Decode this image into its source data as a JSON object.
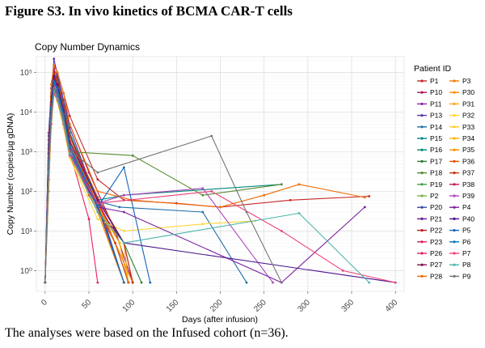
{
  "figure_title": "Figure S3. In vivo kinetics of BCMA CAR-T cells",
  "caption": "The analyses were based on the Infused cohort (n=36).",
  "chart_data": {
    "type": "line",
    "title": "Copy Number Dynamics",
    "xlabel": "Days (after infusion)",
    "ylabel": "Copy Number (copies/µg gDNA)",
    "yscale": "log",
    "xlim": [
      -10,
      410
    ],
    "ylim": [
      0.3,
      250000
    ],
    "xticks": [
      0,
      50,
      100,
      150,
      200,
      250,
      300,
      350,
      400
    ],
    "yticks": [
      1,
      10,
      100,
      1000,
      10000,
      100000
    ],
    "ytick_labels": [
      "10⁰",
      "10¹",
      "10²",
      "10³",
      "10⁴",
      "10⁵"
    ],
    "grid": true,
    "legend_title": "Patient ID",
    "legend_position": "right",
    "series": [
      {
        "name": "P1",
        "color": "#c62828",
        "x": [
          0,
          4,
          8,
          11,
          14,
          21,
          28,
          60,
          90,
          150,
          200,
          280,
          370
        ],
        "y": [
          0.5,
          2000,
          60000,
          150000,
          100000,
          30000,
          8000,
          200,
          60,
          50,
          40,
          60,
          75
        ]
      },
      {
        "name": "P10",
        "color": "#ad1457",
        "x": [
          0,
          4,
          7,
          10,
          14,
          21,
          28,
          50,
          80,
          100
        ],
        "y": [
          0.5,
          1000,
          30000,
          120000,
          80000,
          20000,
          5000,
          300,
          10,
          0.5
        ]
      },
      {
        "name": "P11",
        "color": "#8e24aa",
        "x": [
          0,
          4,
          7,
          10,
          14,
          21,
          28,
          60,
          90
        ],
        "y": [
          0.5,
          3000,
          40000,
          100000,
          60000,
          15000,
          3000,
          50,
          0.5
        ]
      },
      {
        "name": "P13",
        "color": "#5e35b1",
        "x": [
          0,
          4,
          7,
          10,
          14,
          21,
          28,
          50,
          80,
          95
        ],
        "y": [
          0.5,
          500,
          20000,
          220000,
          90000,
          20000,
          4000,
          200,
          5,
          0.5
        ]
      },
      {
        "name": "P14",
        "color": "#1e6fa8",
        "x": [
          0,
          4,
          7,
          10,
          14,
          21,
          28,
          55,
          85,
          180,
          230
        ],
        "y": [
          0.5,
          400,
          15000,
          80000,
          50000,
          10000,
          2000,
          60,
          40,
          30,
          0.5
        ]
      },
      {
        "name": "P15",
        "color": "#00838f",
        "x": [
          0,
          4,
          7,
          10,
          14,
          21,
          28,
          50,
          80,
          95
        ],
        "y": [
          0.5,
          200,
          8000,
          50000,
          40000,
          9000,
          1500,
          100,
          5,
          0.5
        ]
      },
      {
        "name": "P16",
        "color": "#00897b",
        "x": [
          0,
          4,
          7,
          10,
          14,
          21,
          28,
          60,
          90,
          270
        ],
        "y": [
          0.5,
          800,
          25000,
          100000,
          70000,
          15000,
          3000,
          60,
          80,
          150
        ]
      },
      {
        "name": "P17",
        "color": "#2e7d32",
        "x": [
          0,
          4,
          7,
          10,
          14,
          21,
          28,
          60,
          90,
          110
        ],
        "y": [
          0.5,
          600,
          12000,
          60000,
          40000,
          9000,
          1000,
          40,
          5,
          0.5
        ]
      },
      {
        "name": "P18",
        "color": "#558b2f",
        "x": [
          0,
          4,
          7,
          10,
          14,
          21,
          28,
          100,
          180,
          270
        ],
        "y": [
          0.5,
          100,
          5000,
          30000,
          20000,
          5000,
          1000,
          800,
          80,
          150
        ]
      },
      {
        "name": "P19",
        "color": "#43a047",
        "x": [
          0,
          4,
          7,
          10,
          14,
          21,
          28,
          60,
          85,
          95
        ],
        "y": [
          0.5,
          1500,
          20000,
          70000,
          50000,
          10000,
          2000,
          50,
          5,
          0.5
        ]
      },
      {
        "name": "P2",
        "color": "#7cb342",
        "x": [
          0,
          4,
          7,
          10,
          14,
          21,
          28,
          60,
          90
        ],
        "y": [
          0.5,
          500,
          10000,
          40000,
          30000,
          6000,
          800,
          30,
          0.5
        ]
      },
      {
        "name": "P20",
        "color": "#3949ab",
        "x": [
          0,
          4,
          7,
          10,
          14,
          21,
          28,
          60,
          90
        ],
        "y": [
          0.5,
          2500,
          30000,
          90000,
          60000,
          12000,
          2000,
          60,
          0.5
        ]
      },
      {
        "name": "P21",
        "color": "#6a1b9a",
        "x": [
          0,
          4,
          7,
          10,
          14,
          21,
          28,
          50,
          80,
          100
        ],
        "y": [
          0.5,
          300,
          9000,
          45000,
          30000,
          7000,
          1000,
          100,
          5,
          0.5
        ]
      },
      {
        "name": "P22",
        "color": "#b71c1c",
        "x": [
          0,
          4,
          7,
          10,
          14,
          21,
          28,
          55,
          85,
          95
        ],
        "y": [
          0.5,
          700,
          18000,
          75000,
          50000,
          11000,
          2000,
          80,
          5,
          0.5
        ]
      },
      {
        "name": "P23",
        "color": "#d81b60",
        "x": [
          0,
          4,
          7,
          10,
          14,
          21,
          28,
          55,
          85,
          95
        ],
        "y": [
          0.5,
          1200,
          22000,
          85000,
          55000,
          13000,
          2500,
          90,
          5,
          0.5
        ]
      },
      {
        "name": "P26",
        "color": "#e91e63",
        "x": [
          0,
          4,
          7,
          10,
          14,
          21,
          28,
          50,
          60
        ],
        "y": [
          0.5,
          400,
          10000,
          55000,
          35000,
          8000,
          1000,
          20,
          0.5
        ]
      },
      {
        "name": "P27",
        "color": "#880e4f",
        "x": [
          0,
          4,
          7,
          10,
          14,
          21,
          28,
          60,
          90,
          100
        ],
        "y": [
          0.5,
          900,
          14000,
          65000,
          45000,
          10000,
          1500,
          40,
          5,
          0.5
        ]
      },
      {
        "name": "P28",
        "color": "#ef6c00",
        "x": [
          0,
          4,
          7,
          10,
          14,
          21,
          28,
          60,
          100,
          200,
          250,
          290,
          365
        ],
        "y": [
          0.5,
          1000,
          50000,
          150000,
          100000,
          30000,
          5000,
          100,
          60,
          40,
          80,
          150,
          70
        ]
      },
      {
        "name": "P3",
        "color": "#f57c00",
        "x": [
          0,
          4,
          7,
          10,
          14,
          21,
          28,
          55,
          85,
          95
        ],
        "y": [
          0.5,
          600,
          16000,
          70000,
          45000,
          10000,
          1800,
          70,
          5,
          0.5
        ]
      },
      {
        "name": "P30",
        "color": "#fb8c00",
        "x": [
          0,
          4,
          7,
          10,
          14,
          21,
          28,
          60,
          90
        ],
        "y": [
          0.5,
          300,
          8000,
          40000,
          25000,
          6000,
          900,
          30,
          0.5
        ]
      },
      {
        "name": "P31",
        "color": "#f9a825",
        "x": [
          0,
          4,
          7,
          10,
          14,
          21,
          28,
          60,
          90,
          95
        ],
        "y": [
          0.5,
          200,
          6000,
          35000,
          20000,
          5000,
          800,
          30,
          5,
          0.5
        ]
      },
      {
        "name": "P32",
        "color": "#fdd835",
        "x": [
          0,
          4,
          7,
          10,
          14,
          21,
          28,
          60,
          90,
          180,
          240
        ],
        "y": [
          0.5,
          150,
          4000,
          30000,
          18000,
          4000,
          700,
          20,
          10,
          15,
          18
        ]
      },
      {
        "name": "P33",
        "color": "#ffca28",
        "x": [
          0,
          4,
          7,
          10,
          14,
          21,
          28,
          60,
          90
        ],
        "y": [
          0.5,
          500,
          12000,
          50000,
          35000,
          8000,
          1200,
          40,
          0.5
        ]
      },
      {
        "name": "P34",
        "color": "#ffb300",
        "x": [
          0,
          4,
          7,
          10,
          14,
          21,
          28,
          55,
          85,
          95
        ],
        "y": [
          0.5,
          800,
          16000,
          60000,
          40000,
          9000,
          1500,
          60,
          5,
          0.5
        ]
      },
      {
        "name": "P35",
        "color": "#ff8f00",
        "x": [
          0,
          4,
          7,
          10,
          14,
          21,
          28,
          60,
          100
        ],
        "y": [
          0.5,
          1000,
          20000,
          80000,
          55000,
          12000,
          2000,
          50,
          0.5
        ]
      },
      {
        "name": "P36",
        "color": "#e65100",
        "x": [
          0,
          4,
          7,
          10,
          14,
          21,
          28,
          50,
          80,
          95
        ],
        "y": [
          0.5,
          600,
          14000,
          60000,
          40000,
          8000,
          1300,
          80,
          5,
          0.5
        ]
      },
      {
        "name": "P37",
        "color": "#bf360c",
        "x": [
          0,
          4,
          7,
          10,
          14,
          21,
          28,
          60,
          90,
          100
        ],
        "y": [
          0.5,
          1200,
          25000,
          100000,
          65000,
          14000,
          2500,
          70,
          5,
          0.5
        ]
      },
      {
        "name": "P38",
        "color": "#c2185b",
        "x": [
          0,
          4,
          7,
          10,
          14,
          21,
          28,
          60,
          90
        ],
        "y": [
          0.5,
          700,
          15000,
          70000,
          45000,
          10000,
          1500,
          40,
          0.5
        ]
      },
      {
        "name": "P39",
        "color": "#ab47bc",
        "x": [
          0,
          4,
          7,
          10,
          14,
          21,
          28,
          60,
          90,
          180,
          260
        ],
        "y": [
          0.5,
          400,
          9000,
          45000,
          30000,
          7000,
          1000,
          50,
          80,
          120,
          0.5
        ]
      },
      {
        "name": "P4",
        "color": "#7b1fa2",
        "x": [
          0,
          4,
          7,
          10,
          14,
          21,
          28,
          60,
          90,
          270,
          365
        ],
        "y": [
          0.5,
          300,
          7000,
          40000,
          25000,
          6000,
          900,
          40,
          30,
          0.5,
          40
        ]
      },
      {
        "name": "P40",
        "color": "#4a148c",
        "x": [
          0,
          4,
          7,
          10,
          14,
          21,
          28,
          60,
          90,
          400
        ],
        "y": [
          0.5,
          900,
          18000,
          80000,
          50000,
          11000,
          1800,
          60,
          5,
          0.5
        ]
      },
      {
        "name": "P5",
        "color": "#1565c0",
        "x": [
          0,
          4,
          7,
          10,
          14,
          21,
          28,
          60,
          90,
          120
        ],
        "y": [
          0.5,
          500,
          12000,
          55000,
          35000,
          8000,
          1200,
          40,
          400,
          0.5
        ]
      },
      {
        "name": "P6",
        "color": "#0277bd",
        "x": [
          0,
          4,
          7,
          10,
          14,
          21,
          28,
          60,
          90
        ],
        "y": [
          0.5,
          600,
          13000,
          60000,
          40000,
          9000,
          1400,
          45,
          0.5
        ]
      },
      {
        "name": "P7",
        "color": "#ec407a",
        "x": [
          0,
          4,
          7,
          10,
          14,
          21,
          28,
          60,
          190,
          270,
          340,
          400
        ],
        "y": [
          0.5,
          200,
          5000,
          30000,
          20000,
          5000,
          800,
          50,
          100,
          10,
          1,
          0.5
        ]
      },
      {
        "name": "P8",
        "color": "#4db6ac",
        "x": [
          0,
          4,
          7,
          10,
          14,
          21,
          28,
          60,
          90,
          290,
          370
        ],
        "y": [
          0.5,
          300,
          6000,
          35000,
          22000,
          5500,
          900,
          30,
          5,
          28,
          0.5
        ]
      },
      {
        "name": "P9",
        "color": "#757575",
        "x": [
          0,
          4,
          7,
          10,
          14,
          21,
          28,
          60,
          190,
          230,
          270
        ],
        "y": [
          0.5,
          400,
          8000,
          40000,
          28000,
          7000,
          1100,
          300,
          2500,
          30,
          0.5
        ]
      }
    ]
  }
}
